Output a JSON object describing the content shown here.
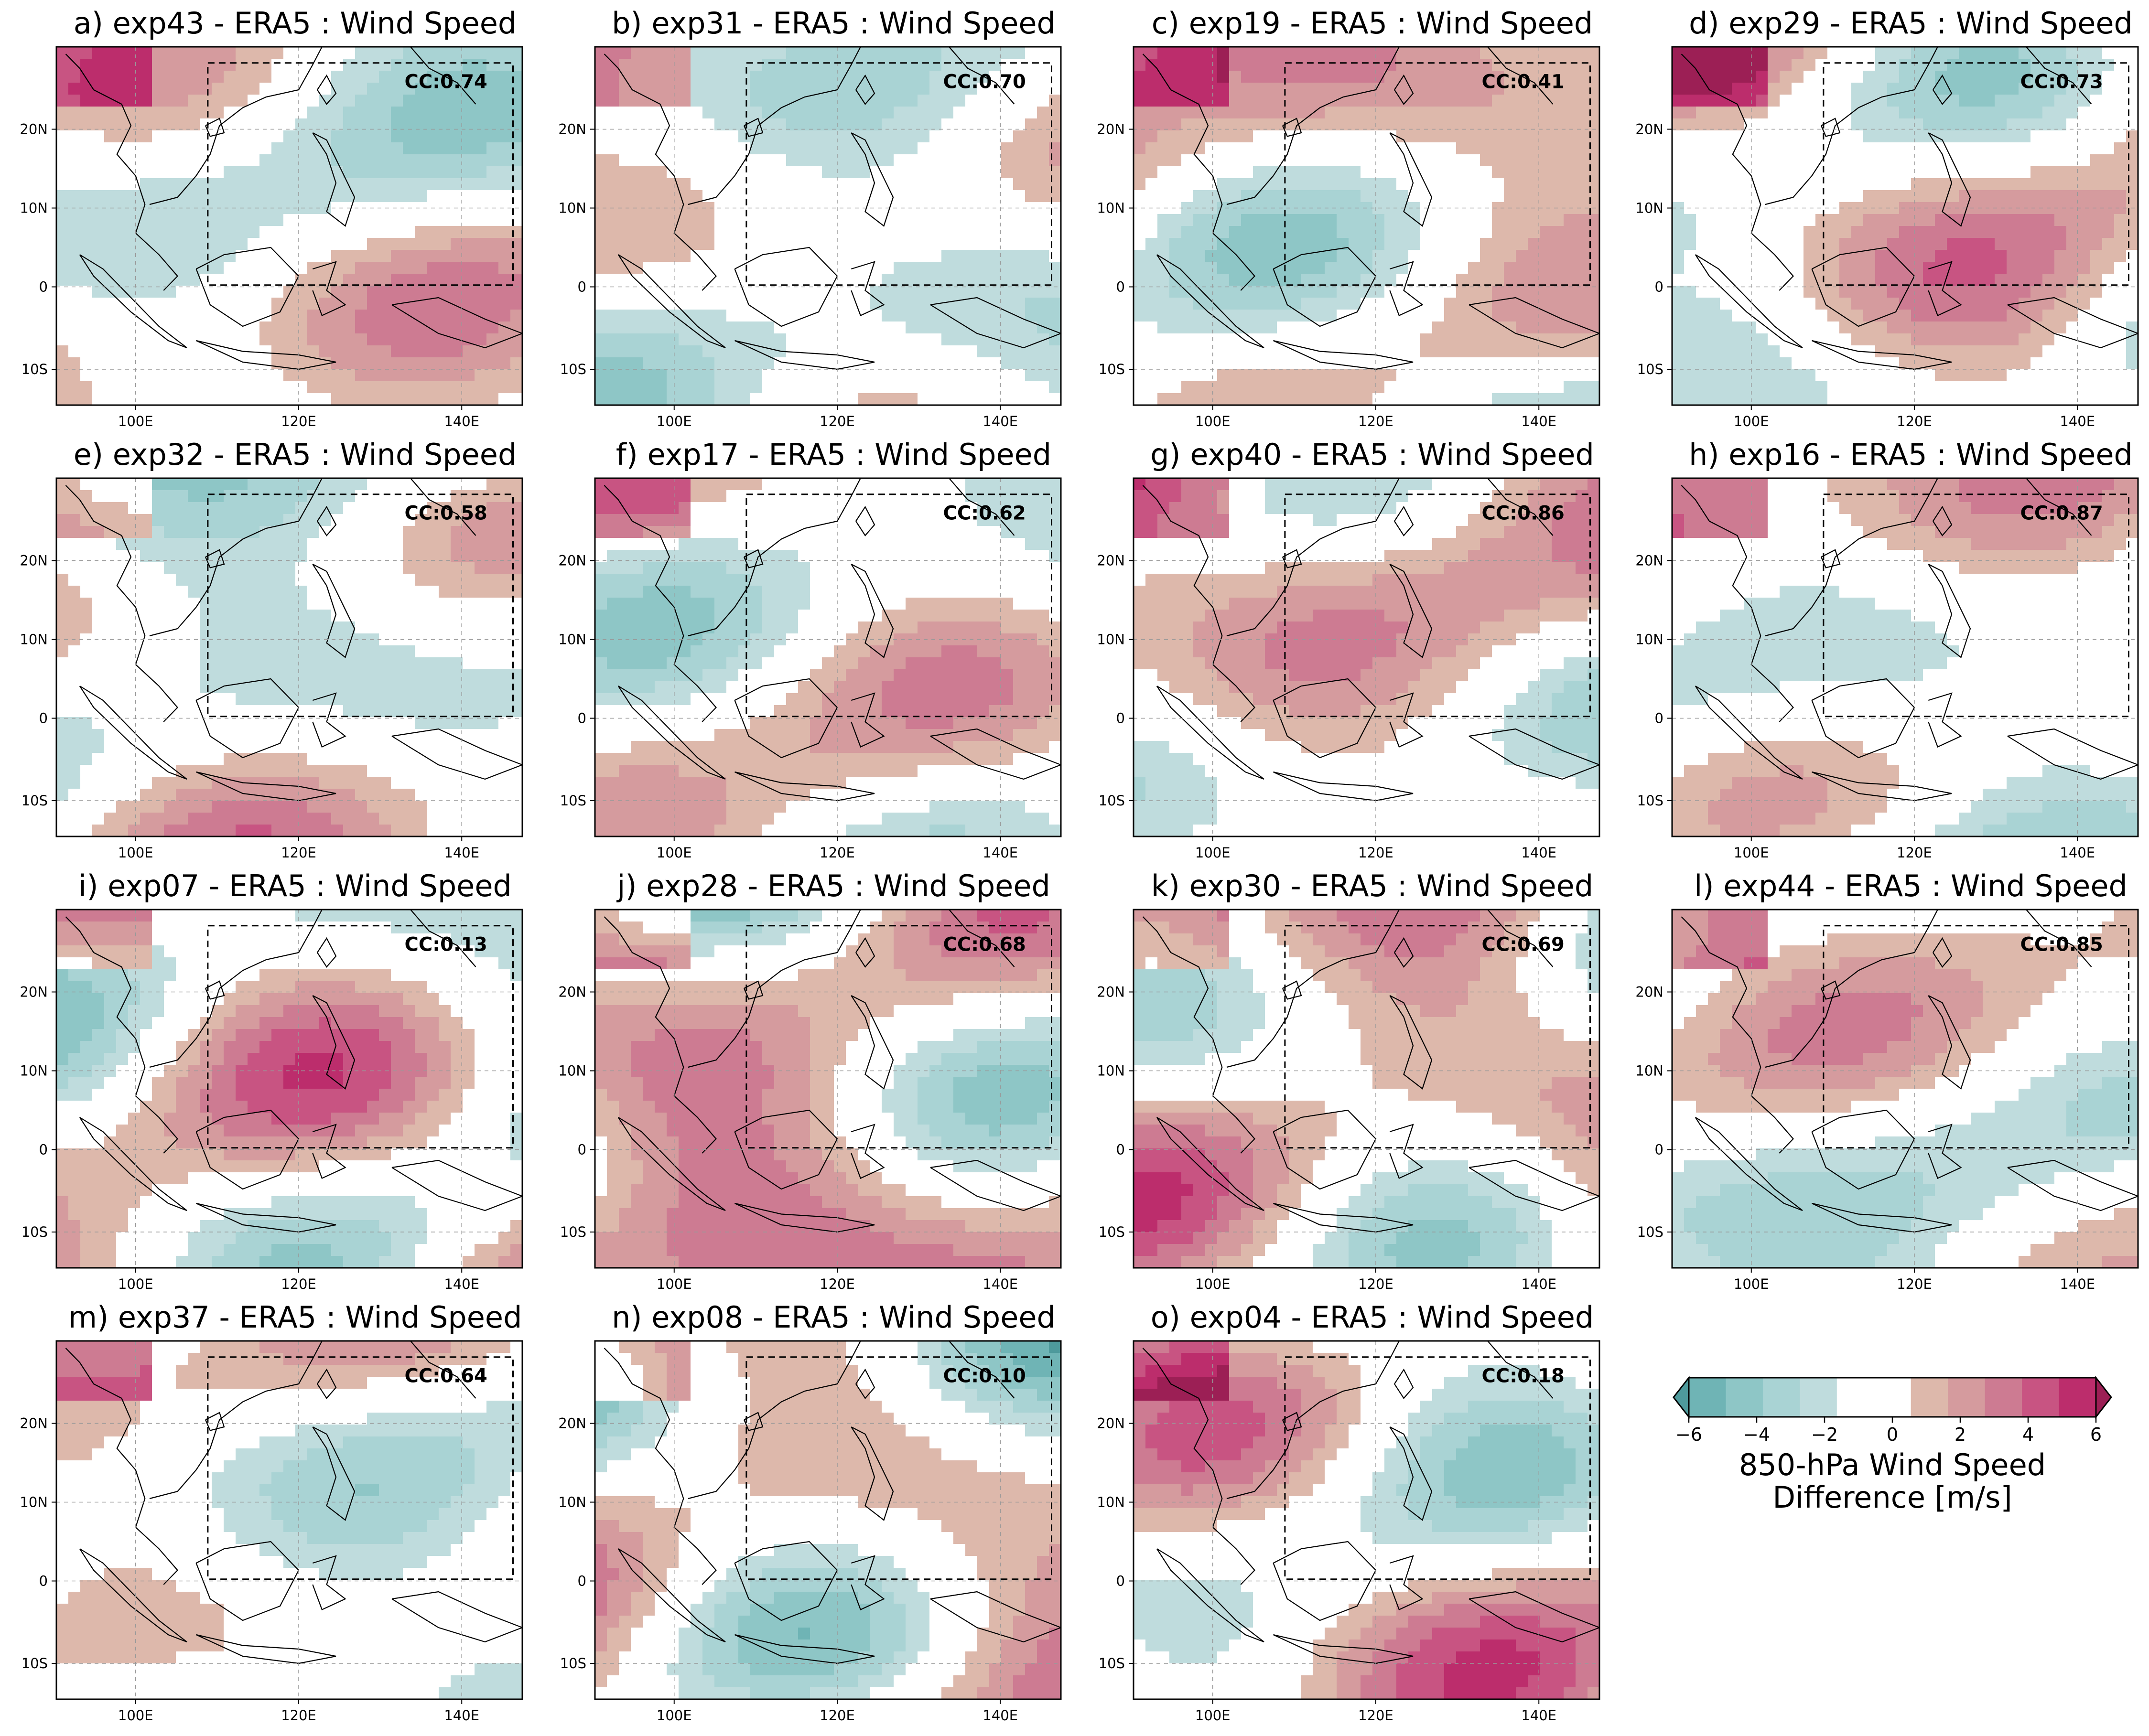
{
  "panels": [
    {
      "title": "a) exp43 - ERA5 : Wind Speed",
      "cc": "CC:0.74",
      "pattern": 0
    },
    {
      "title": "b) exp31 - ERA5 : Wind Speed",
      "cc": "CC:0.70",
      "pattern": 1
    },
    {
      "title": "c) exp19 - ERA5 : Wind Speed",
      "cc": "CC:0.41",
      "pattern": 2
    },
    {
      "title": "d) exp29 - ERA5 : Wind Speed",
      "cc": "CC:0.73",
      "pattern": 3
    },
    {
      "title": "e) exp32 - ERA5 : Wind Speed",
      "cc": "CC:0.58",
      "pattern": 4
    },
    {
      "title": "f) exp17 - ERA5 : Wind Speed",
      "cc": "CC:0.62",
      "pattern": 5
    },
    {
      "title": "g) exp40 - ERA5 : Wind Speed",
      "cc": "CC:0.86",
      "pattern": 6
    },
    {
      "title": "h) exp16 - ERA5 : Wind Speed",
      "cc": "CC:0.87",
      "pattern": 7
    },
    {
      "title": "i) exp07 - ERA5 : Wind Speed",
      "cc": "CC:0.13",
      "pattern": 8
    },
    {
      "title": "j) exp28 - ERA5 : Wind Speed",
      "cc": "CC:0.68",
      "pattern": 9
    },
    {
      "title": "k) exp30 - ERA5 : Wind Speed",
      "cc": "CC:0.69",
      "pattern": 10
    },
    {
      "title": "l) exp44 - ERA5 : Wind Speed",
      "cc": "CC:0.85",
      "pattern": 11
    },
    {
      "title": "m) exp37 - ERA5 : Wind Speed",
      "cc": "CC:0.64",
      "pattern": 12
    },
    {
      "title": "n) exp08 - ERA5 : Wind Speed",
      "cc": "CC:0.10",
      "pattern": 13
    },
    {
      "title": "o) exp04 - ERA5 : Wind Speed",
      "cc": "CC:0.18",
      "pattern": 14
    }
  ],
  "axes": {
    "lon_ticks": [
      "100E",
      "120E",
      "140E"
    ],
    "lat_ticks": [
      "20N",
      "10N",
      "0",
      "10S"
    ]
  },
  "colorbar": {
    "ticks": [
      "−6",
      "−4",
      "−2",
      "0",
      "2",
      "4",
      "6"
    ],
    "label_line1": "850-hPa Wind Speed",
    "label_line2": "Difference [m/s]",
    "colors": [
      "#4e9a9c",
      "#6fb4b5",
      "#8ec6c6",
      "#a9d3d4",
      "#bfdcdd",
      "#ffffff",
      "#ffffff",
      "#ddb8ab",
      "#d59b9e",
      "#cd7b92",
      "#c85482",
      "#bc2d6c",
      "#9c1f55"
    ]
  }
}
